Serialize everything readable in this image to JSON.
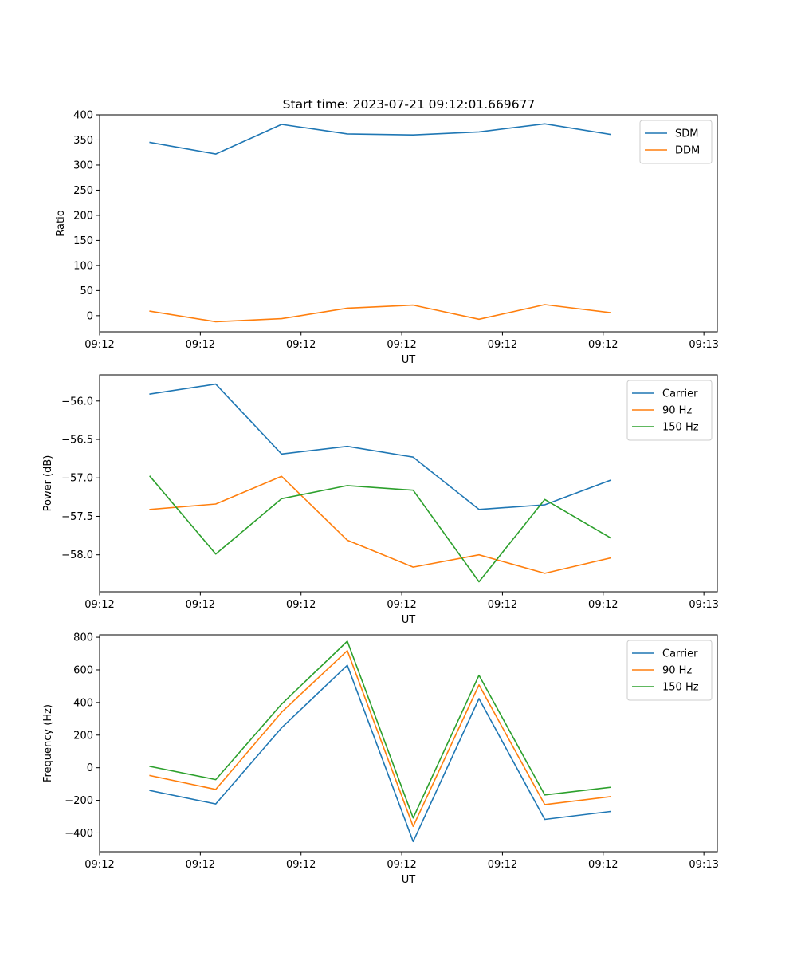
{
  "title": "Start time: 2023-07-21 09:12:01.669677",
  "colors": {
    "blue": "#1f77b4",
    "orange": "#ff7f0e",
    "green": "#2ca02c"
  },
  "chart_data": [
    {
      "type": "line",
      "title": "Start time: 2023-07-21 09:12:01.669677",
      "xlabel": "UT",
      "ylabel": "Ratio",
      "xlim": [
        0,
        9.2
      ],
      "ylim": [
        -32,
        400
      ],
      "x": [
        0.75,
        1.73,
        2.71,
        3.69,
        4.67,
        5.65,
        6.63,
        7.61
      ],
      "xticks": [
        0,
        1.5,
        3,
        4.5,
        6,
        7.5,
        9
      ],
      "xtick_labels": [
        "09:12",
        "09:12",
        "09:12",
        "09:12",
        "09:12",
        "09:12",
        "09:13"
      ],
      "yticks": [
        0,
        50,
        100,
        150,
        200,
        250,
        300,
        350,
        400
      ],
      "ytick_labels": [
        "0",
        "50",
        "100",
        "150",
        "200",
        "250",
        "300",
        "350",
        "400"
      ],
      "legend_position": "top-right",
      "series": [
        {
          "name": "SDM",
          "color": "#1f77b4",
          "values": [
            345,
            322,
            381,
            362,
            360,
            366,
            382,
            361
          ]
        },
        {
          "name": "DDM",
          "color": "#ff7f0e",
          "values": [
            9,
            -12,
            -6,
            15,
            21,
            -7,
            22,
            6
          ]
        }
      ]
    },
    {
      "type": "line",
      "xlabel": "UT",
      "ylabel": "Power (dB)",
      "xlim": [
        0,
        9.2
      ],
      "ylim": [
        -58.48,
        -55.66
      ],
      "x": [
        0.75,
        1.73,
        2.71,
        3.69,
        4.67,
        5.65,
        6.63,
        7.61
      ],
      "xticks": [
        0,
        1.5,
        3,
        4.5,
        6,
        7.5,
        9
      ],
      "xtick_labels": [
        "09:12",
        "09:12",
        "09:12",
        "09:12",
        "09:12",
        "09:12",
        "09:13"
      ],
      "yticks": [
        -56.0,
        -56.5,
        -57.0,
        -57.5,
        -58.0
      ],
      "ytick_labels": [
        "−56.0",
        "−56.5",
        "−57.0",
        "−57.5",
        "−58.0"
      ],
      "legend_position": "top-right",
      "series": [
        {
          "name": "Carrier",
          "color": "#1f77b4",
          "values": [
            -55.91,
            -55.78,
            -56.69,
            -56.59,
            -56.73,
            -57.41,
            -57.35,
            -57.03
          ]
        },
        {
          "name": "90 Hz",
          "color": "#ff7f0e",
          "values": [
            -57.41,
            -57.34,
            -56.98,
            -57.81,
            -58.16,
            -58.0,
            -58.24,
            -58.04
          ]
        },
        {
          "name": "150 Hz",
          "color": "#2ca02c",
          "values": [
            -56.98,
            -57.99,
            -57.27,
            -57.1,
            -57.16,
            -58.35,
            -57.28,
            -57.78
          ]
        }
      ]
    },
    {
      "type": "line",
      "xlabel": "UT",
      "ylabel": "Frequency (Hz)",
      "xlim": [
        0,
        9.2
      ],
      "ylim": [
        -515,
        815
      ],
      "x": [
        0.75,
        1.73,
        2.71,
        3.69,
        4.67,
        5.65,
        6.63,
        7.61
      ],
      "xticks": [
        0,
        1.5,
        3,
        4.5,
        6,
        7.5,
        9
      ],
      "xtick_labels": [
        "09:12",
        "09:12",
        "09:12",
        "09:12",
        "09:12",
        "09:12",
        "09:13"
      ],
      "yticks": [
        -400,
        -200,
        0,
        200,
        400,
        600,
        800
      ],
      "ytick_labels": [
        "−400",
        "−200",
        "0",
        "200",
        "400",
        "600",
        "800"
      ],
      "legend_position": "top-right",
      "series": [
        {
          "name": "Carrier",
          "color": "#1f77b4",
          "values": [
            -140,
            -222,
            245,
            628,
            -453,
            424,
            -317,
            -268
          ]
        },
        {
          "name": "90 Hz",
          "color": "#ff7f0e",
          "values": [
            -48,
            -133,
            340,
            718,
            -360,
            508,
            -226,
            -177
          ]
        },
        {
          "name": "150 Hz",
          "color": "#2ca02c",
          "values": [
            8,
            -73,
            390,
            776,
            -308,
            567,
            -167,
            -120
          ]
        }
      ]
    }
  ]
}
